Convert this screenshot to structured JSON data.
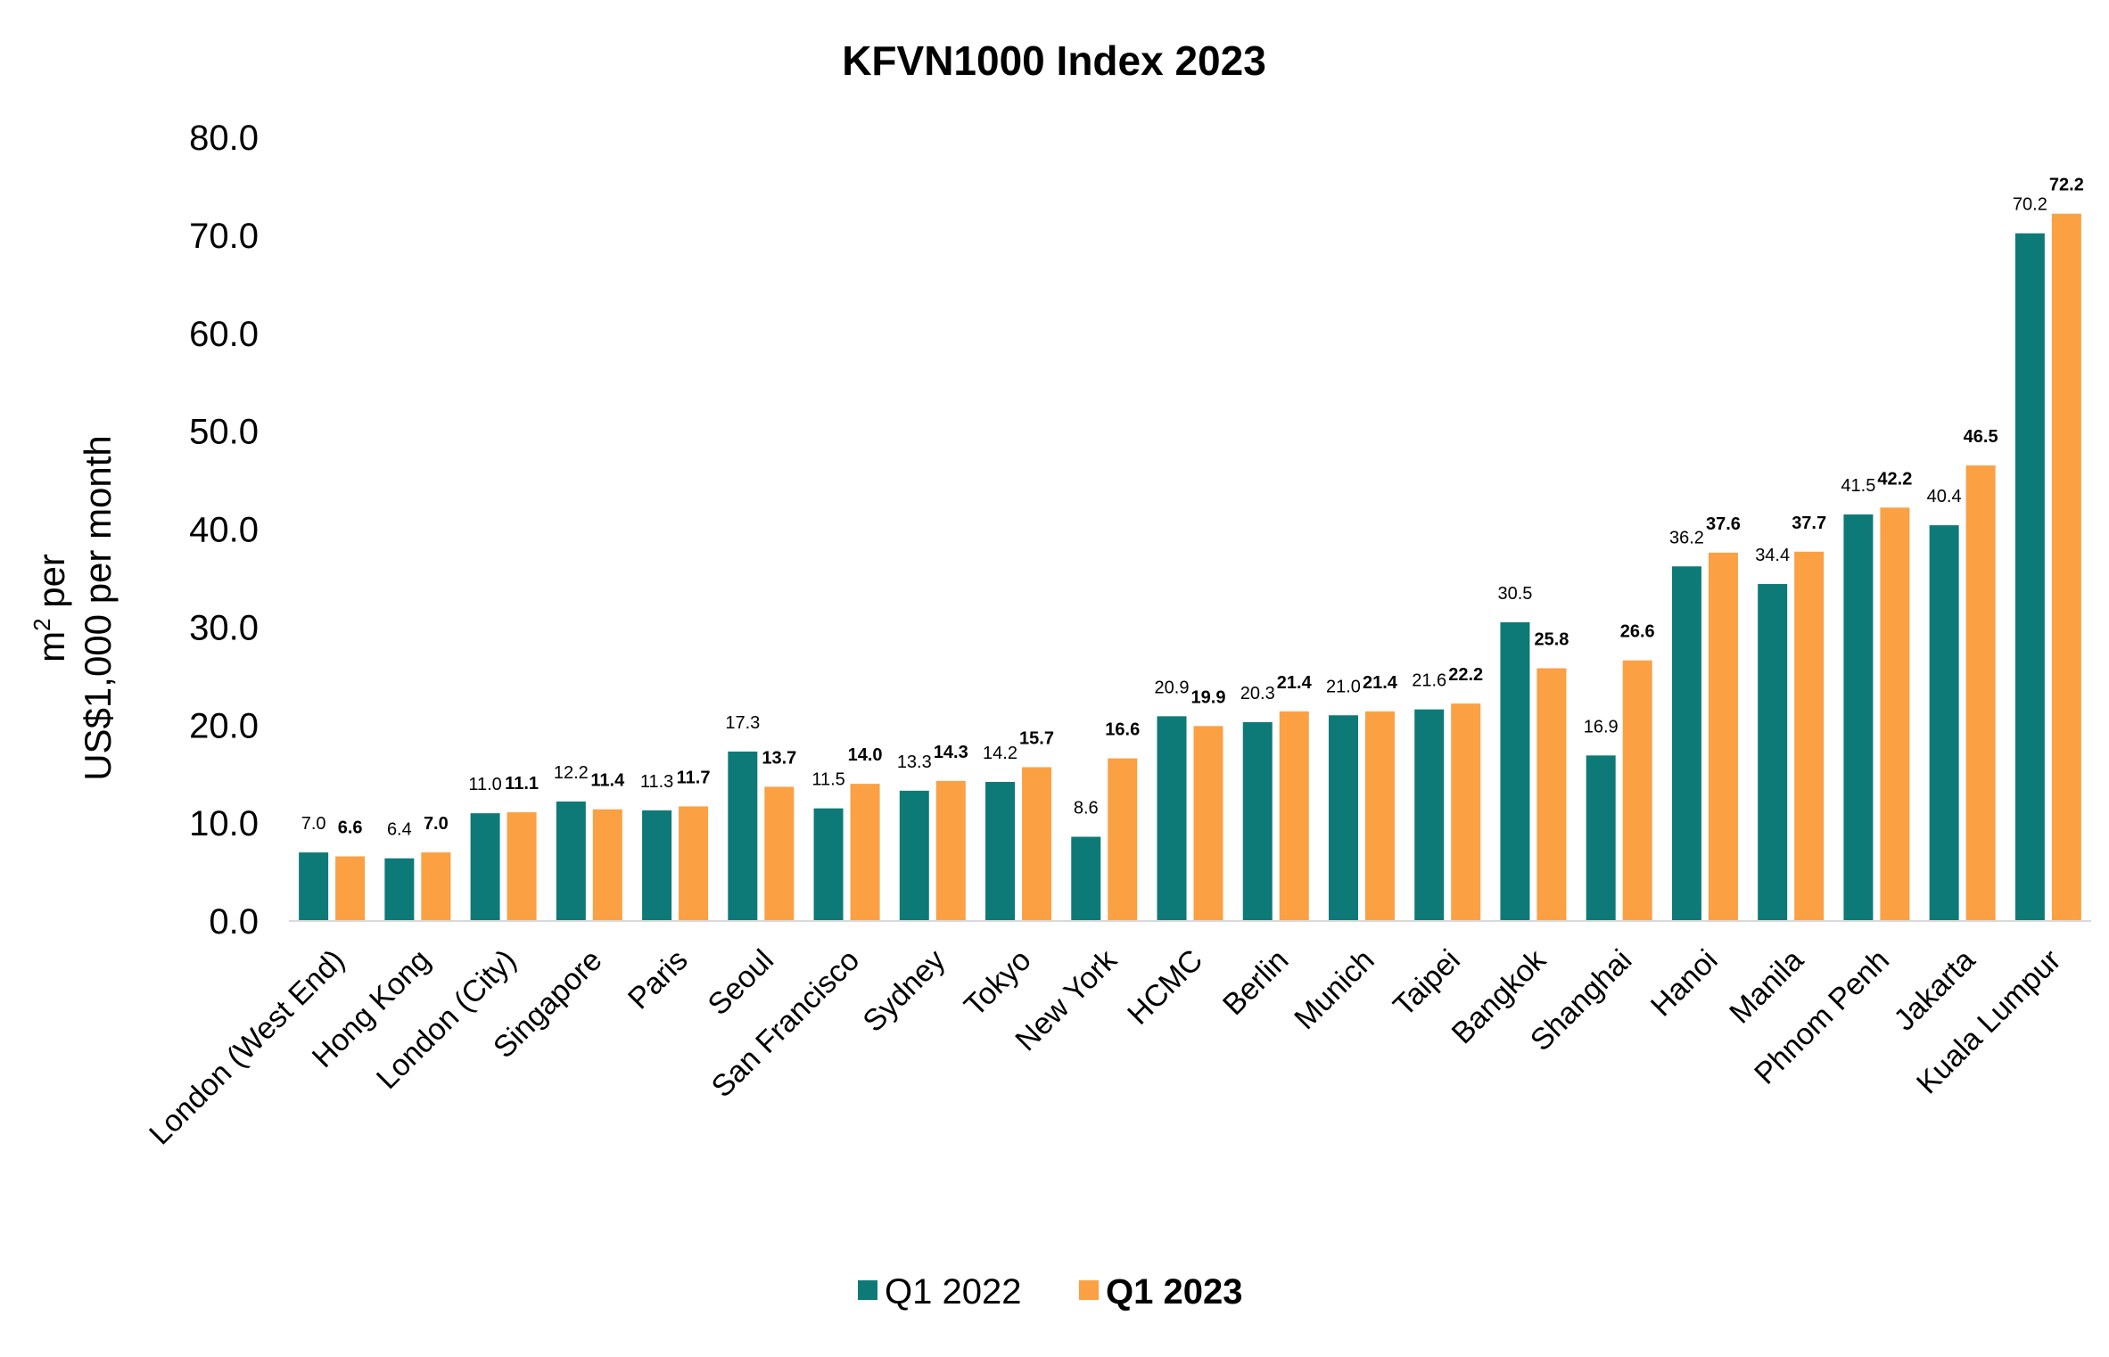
{
  "chart_data": {
    "type": "bar",
    "title": "KFVN1000 Index 2023",
    "ylabel_line1": "m",
    "ylabel_sup": "2",
    "ylabel_line1_suffix": " per",
    "ylabel_line2": "US$1,000 per month",
    "xlabel": "",
    "ylim": [
      0,
      80
    ],
    "yticks": [
      "0.0",
      "10.0",
      "20.0",
      "30.0",
      "40.0",
      "50.0",
      "60.0",
      "70.0",
      "80.0"
    ],
    "ytick_values": [
      0,
      10,
      20,
      30,
      40,
      50,
      60,
      70,
      80
    ],
    "grid": false,
    "legend_position": "bottom-center",
    "categories": [
      "London (West End)",
      "Hong Kong",
      "London (City)",
      "Singapore",
      "Paris",
      "Seoul",
      "San Francisco",
      "Sydney",
      "Tokyo",
      "New York",
      "HCMC",
      "Berlin",
      "Munich",
      "Taipei",
      "Bangkok",
      "Shanghai",
      "Hanoi",
      "Manila",
      "Phnom Penh",
      "Jakarta",
      "Kuala Lumpur"
    ],
    "series": [
      {
        "name": "Q1 2022",
        "color": "#0e7a78",
        "bold": false,
        "values": [
          7.0,
          6.4,
          11.0,
          12.2,
          11.3,
          17.3,
          11.5,
          13.3,
          14.2,
          8.6,
          20.9,
          20.3,
          21.0,
          21.6,
          30.5,
          16.9,
          36.2,
          34.4,
          41.5,
          40.4,
          70.2
        ],
        "labels": [
          "7.0",
          "6.4",
          "11.0",
          "12.2",
          "11.3",
          "17.3",
          "11.5",
          "13.3",
          "14.2",
          "8.6",
          "20.9",
          "20.3",
          "21.0",
          "21.6",
          "30.5",
          "16.9",
          "36.2",
          "34.4",
          "41.5",
          "40.4",
          "70.2"
        ]
      },
      {
        "name": "Q1 2023",
        "color": "#fba043",
        "bold": true,
        "values": [
          6.6,
          7.0,
          11.1,
          11.4,
          11.7,
          13.7,
          14.0,
          14.3,
          15.7,
          16.6,
          19.9,
          21.4,
          21.4,
          22.2,
          25.8,
          26.6,
          37.6,
          37.7,
          42.2,
          46.5,
          72.2
        ],
        "labels": [
          "6.6",
          "7.0",
          "11.1",
          "11.4",
          "11.7",
          "13.7",
          "14.0",
          "14.3",
          "15.7",
          "16.6",
          "19.9",
          "21.4",
          "21.4",
          "22.2",
          "25.8",
          "26.6",
          "37.6",
          "37.7",
          "42.2",
          "46.5",
          "72.2"
        ]
      }
    ]
  }
}
